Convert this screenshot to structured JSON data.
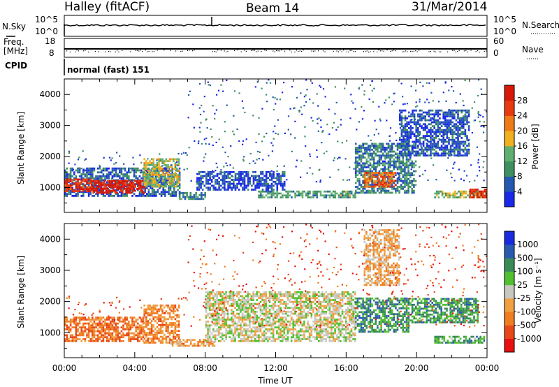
{
  "header": {
    "station": "Halley (fitACF)",
    "beam": "Beam 14",
    "date": "31/Mar/2014"
  },
  "top_panels": {
    "nsky_label": "N.Sky",
    "nsky_ticks": [
      "10^5",
      "10^0"
    ],
    "nsearch_label": "N.Search",
    "nsearch_ticks": [
      "10^5",
      "10^0"
    ],
    "freq_label": "Freq.",
    "freq_unit": "[MHz]",
    "freq_ticks": [
      "18",
      "8"
    ],
    "nave_label": "Nave",
    "nave_ticks": [
      "60",
      "0"
    ],
    "cpid_label": "CPID",
    "cpid_value": "normal (fast) 151"
  },
  "colors": {
    "power_scale": [
      "#1a28e8",
      "#2558b0",
      "#3f8f60",
      "#5fb070",
      "#f0b020",
      "#f07a18",
      "#e83a10",
      "#d81808"
    ],
    "velocity_scale": [
      "#e81010",
      "#e84818",
      "#f07e20",
      "#f0a040",
      "#c8c8c0",
      "#50c030",
      "#3a8a58",
      "#2a5ab0",
      "#1a2ae0"
    ]
  },
  "chart_data": [
    {
      "type": "heatmap",
      "title": "",
      "xlabel": "",
      "ylabel": "Slant Range [km]",
      "x_ticks": [
        "00:00",
        "04:00",
        "08:00",
        "12:00",
        "16:00",
        "20:00",
        "00:00"
      ],
      "y_ticks": [
        "1000",
        "2000",
        "3000",
        "4000"
      ],
      "xlim_hours": [
        0,
        24
      ],
      "ylim_km": [
        200,
        4500
      ],
      "colorbar_label": "Power [dB]",
      "colorbar_ticks": [
        "4",
        "8",
        "12",
        "16",
        "20",
        "24",
        "28"
      ],
      "colorbar_range": [
        0,
        32
      ],
      "regions": [
        {
          "t0": 0.0,
          "t1": 6.6,
          "r0": 700,
          "r1": 1600,
          "level": 1.0
        },
        {
          "t0": 0.0,
          "t1": 1.5,
          "r0": 850,
          "r1": 1250,
          "level": 6.5
        },
        {
          "t0": 1.5,
          "t1": 4.5,
          "r0": 800,
          "r1": 1200,
          "level": 7.2
        },
        {
          "t0": 4.5,
          "t1": 6.5,
          "r0": 1000,
          "r1": 1900,
          "level": 3.6
        },
        {
          "t0": 6.5,
          "t1": 8.0,
          "r0": 600,
          "r1": 800,
          "level": 1.8
        },
        {
          "t0": 7.5,
          "t1": 12.5,
          "r0": 900,
          "r1": 1500,
          "level": 0.6
        },
        {
          "t0": 11.0,
          "t1": 16.5,
          "r0": 650,
          "r1": 900,
          "level": 2.4
        },
        {
          "t0": 16.5,
          "t1": 20.0,
          "r0": 800,
          "r1": 2400,
          "level": 1.6
        },
        {
          "t0": 17.0,
          "t1": 18.8,
          "r0": 1000,
          "r1": 1500,
          "level": 5.5
        },
        {
          "t0": 19.0,
          "t1": 23.0,
          "r0": 2000,
          "r1": 3500,
          "level": 0.8
        },
        {
          "t0": 21.0,
          "t1": 24.0,
          "r0": 650,
          "r1": 900,
          "level": 3.2
        },
        {
          "t0": 23.0,
          "t1": 24.0,
          "r0": 650,
          "r1": 950,
          "level": 6.6
        }
      ]
    },
    {
      "type": "heatmap",
      "title": "",
      "xlabel": "Time UT",
      "ylabel": "Slant Range [km]",
      "x_ticks": [
        "00:00",
        "04:00",
        "08:00",
        "12:00",
        "16:00",
        "20:00",
        "00:00"
      ],
      "y_ticks": [
        "1000",
        "2000",
        "3000",
        "4000"
      ],
      "xlim_hours": [
        0,
        24
      ],
      "ylim_km": [
        200,
        4500
      ],
      "colorbar_label": "Velocity [m s⁻¹]",
      "colorbar_ticks": [
        "1000",
        "500",
        "100",
        "25",
        "-25",
        "-100",
        "-500",
        "-1000"
      ],
      "regions": [
        {
          "t0": 0.0,
          "t1": 4.5,
          "r0": 700,
          "r1": 1500,
          "level": 1.8
        },
        {
          "t0": 4.5,
          "t1": 6.5,
          "r0": 650,
          "r1": 1900,
          "level": 2.2
        },
        {
          "t0": 6.0,
          "t1": 8.5,
          "r0": 550,
          "r1": 750,
          "level": 2.6
        },
        {
          "t0": 8.0,
          "t1": 16.5,
          "r0": 700,
          "r1": 2300,
          "level": 4.0
        },
        {
          "t0": 16.5,
          "t1": 19.5,
          "r0": 1000,
          "r1": 2100,
          "level": 6.0
        },
        {
          "t0": 17.0,
          "t1": 19.0,
          "r0": 2500,
          "r1": 4300,
          "level": 3.0
        },
        {
          "t0": 19.5,
          "t1": 23.5,
          "r0": 1300,
          "r1": 2100,
          "level": 5.8
        },
        {
          "t0": 21.0,
          "t1": 24.0,
          "r0": 650,
          "r1": 900,
          "level": 5.5
        }
      ]
    }
  ]
}
